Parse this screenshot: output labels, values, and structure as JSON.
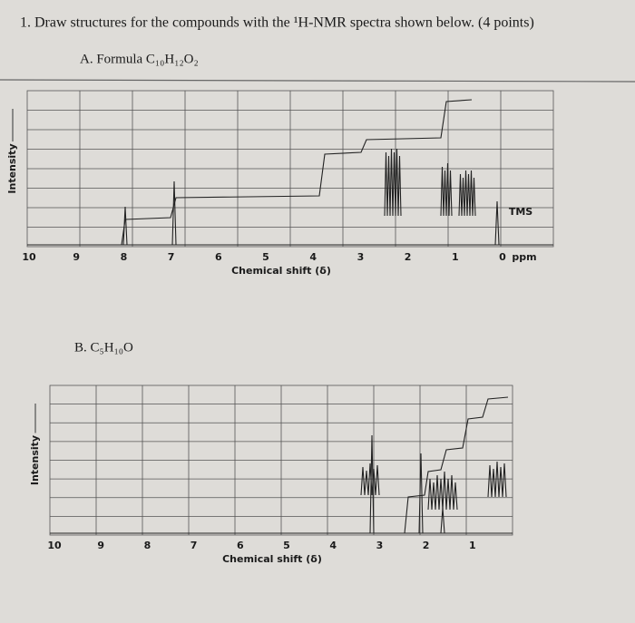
{
  "question": "1. Draw structures for the compounds with the ¹H-NMR spectra shown below. (4 points)",
  "part_a": {
    "label": "A. Formula C₁₀H₁₂O₂",
    "spectrum": {
      "y_label": "Intensity",
      "x_ticks": [
        "10",
        "9",
        "8",
        "7",
        "6",
        "5",
        "4",
        "3",
        "2",
        "1",
        "0"
      ],
      "x_unit": "ppm",
      "x_title": "Chemical shift (δ)",
      "reference": "TMS"
    }
  },
  "part_b": {
    "label": "B. C₅H₁₀O",
    "spectrum": {
      "y_label": "Intensity",
      "x_ticks": [
        "10",
        "9",
        "8",
        "7",
        "6",
        "5",
        "4",
        "3",
        "2",
        "1"
      ],
      "x_title": "Chemical shift (δ)"
    }
  }
}
